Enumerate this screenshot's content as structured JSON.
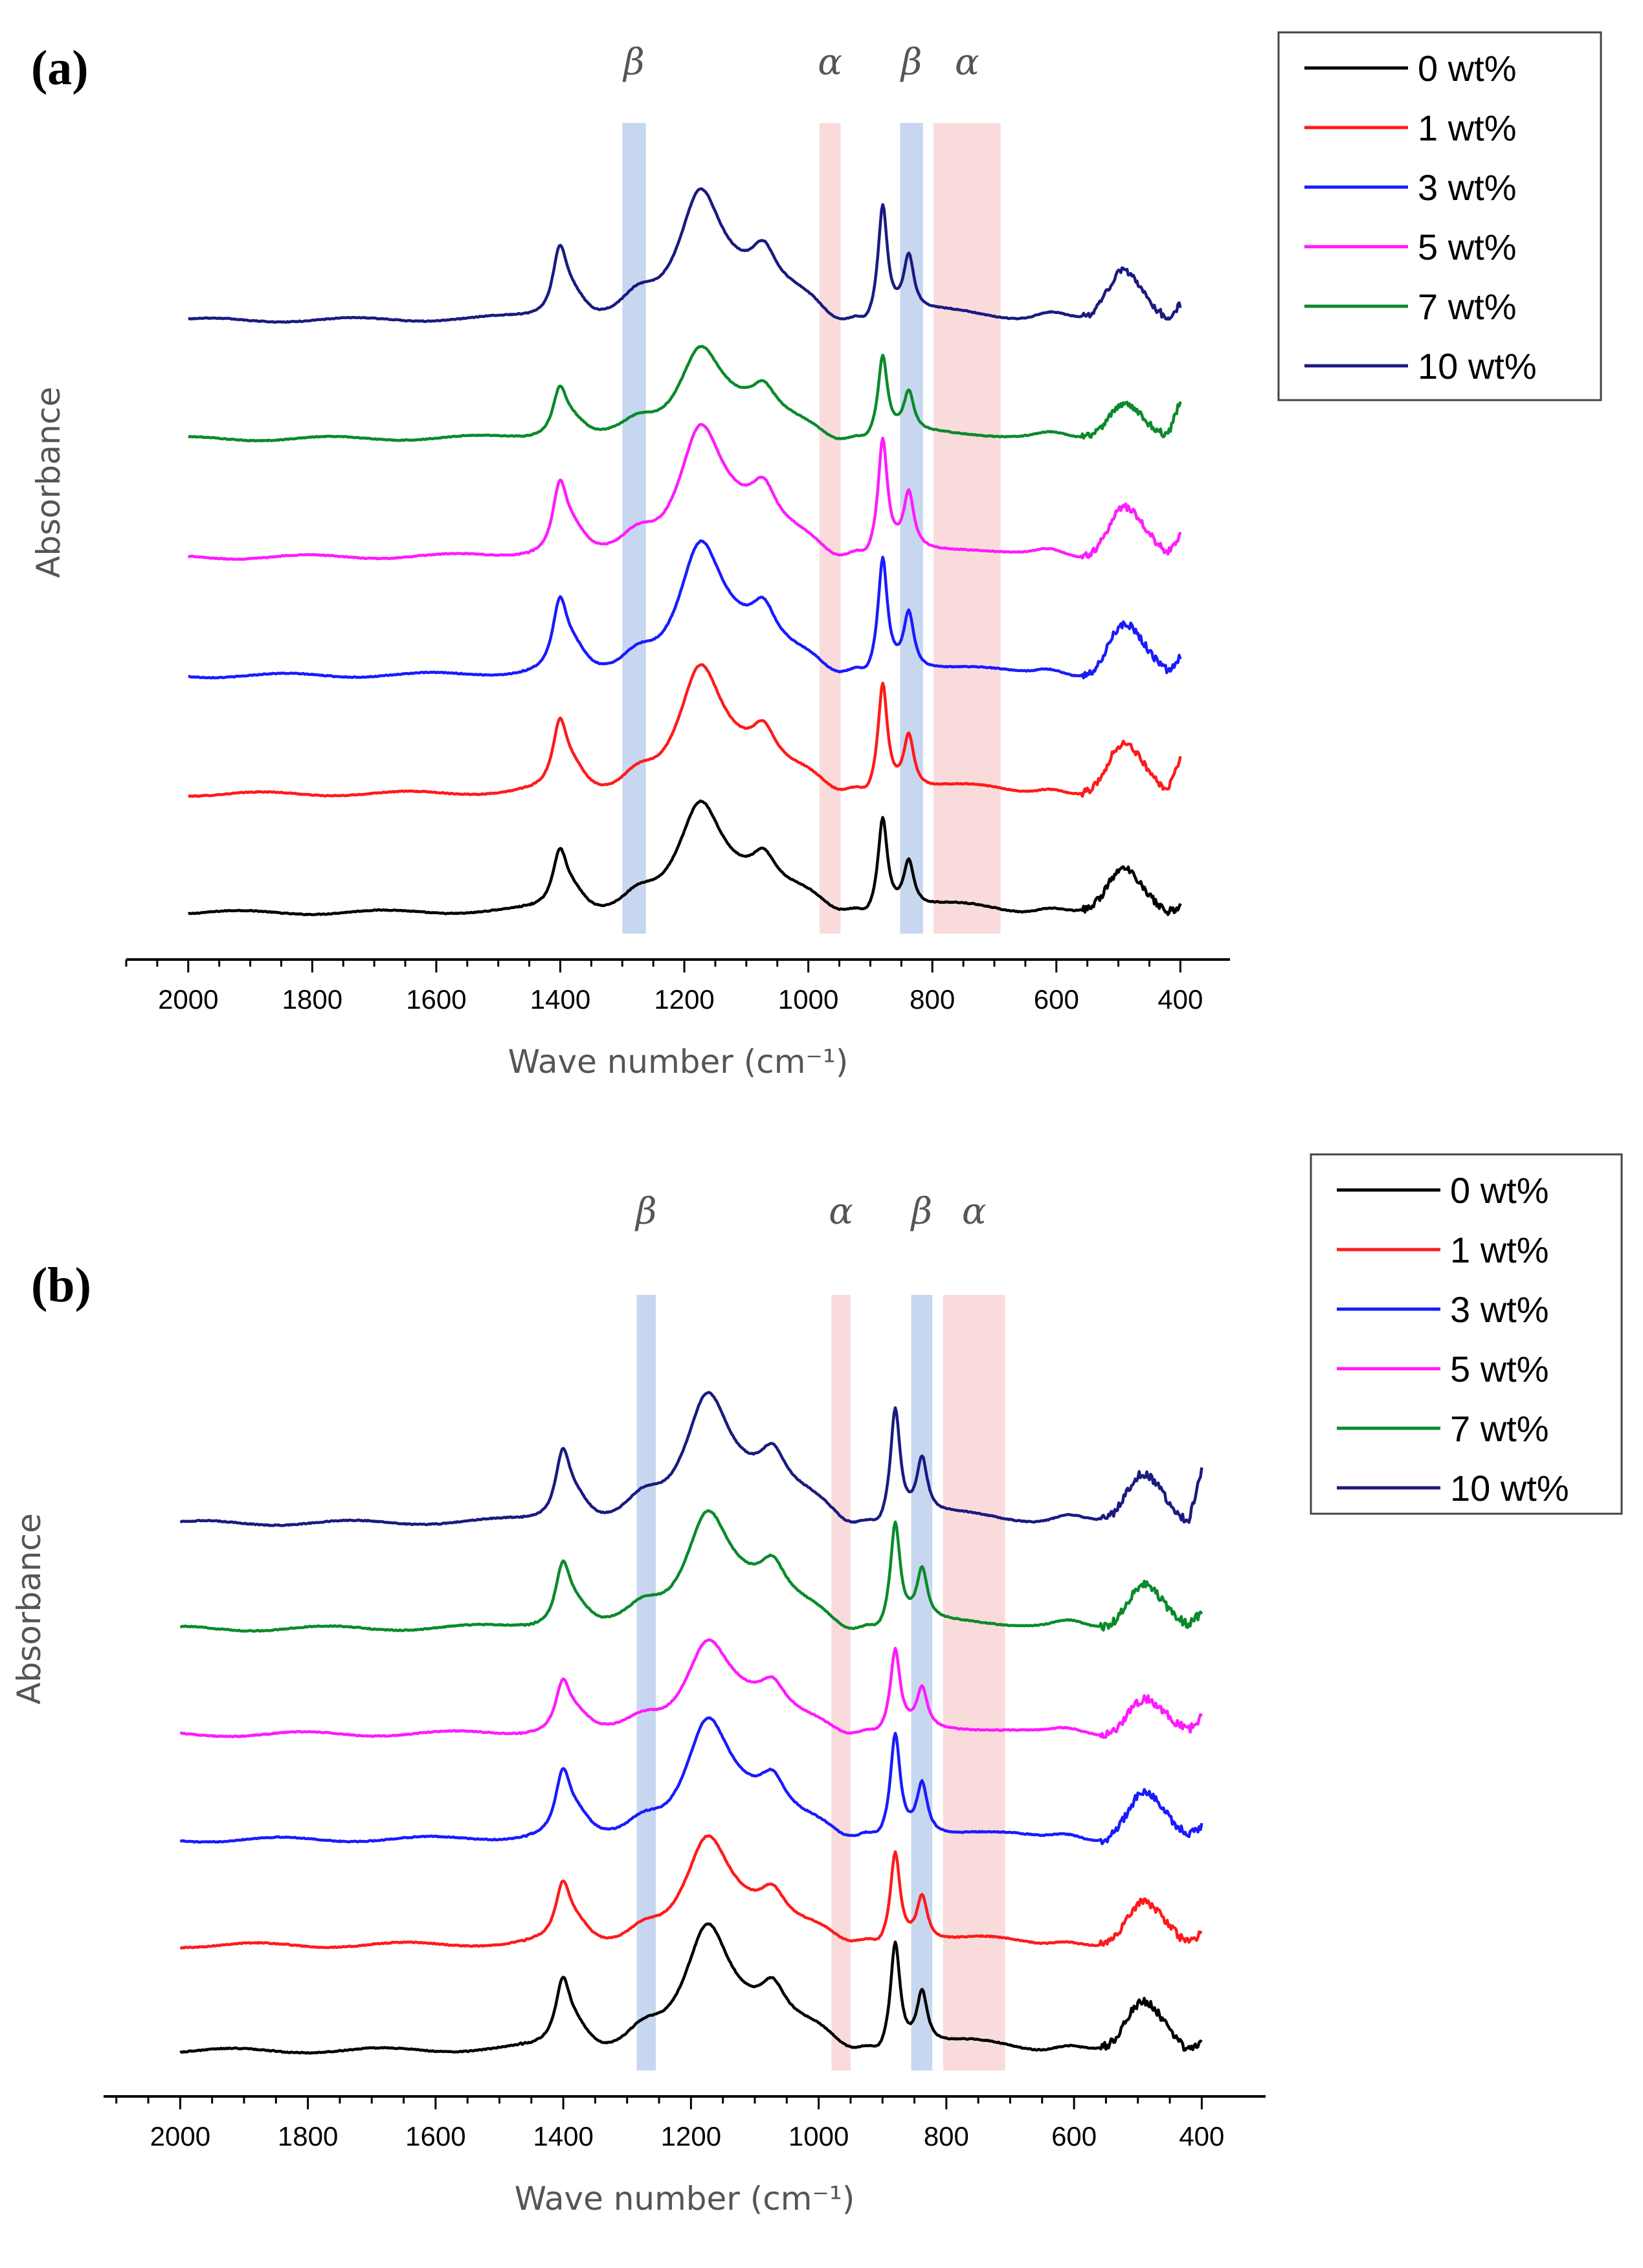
{
  "chart_data": [
    {
      "panel_label": "(a)",
      "type": "line",
      "xlabel": "Wave number (cm⁻¹)",
      "ylabel": "Absorbance",
      "xlim": [
        2100,
        320
      ],
      "x_reversed": true,
      "y_scale": "stacked offset, arbitrary units",
      "xticks": [
        2000,
        1800,
        1600,
        1400,
        1200,
        1000,
        800,
        600,
        400
      ],
      "grid": false,
      "legend_position": "top-right",
      "bands": [
        {
          "label": "β",
          "range": [
            1300,
            1262
          ],
          "color": "#b4c9ea"
        },
        {
          "label": "α",
          "range": [
            982,
            948
          ],
          "color": "#f8cfcf"
        },
        {
          "label": "β",
          "range": [
            852,
            815
          ],
          "color": "#b4c9ea"
        },
        {
          "label": "α",
          "range": [
            798,
            690
          ],
          "color": "#f8cfcf"
        }
      ],
      "series": [
        {
          "name": "0 wt%",
          "color": "#000000",
          "offset": 0.0,
          "scale": 1.0,
          "end_tail": 0.3
        },
        {
          "name": "1 wt%",
          "color": "#ff1a1a",
          "offset": 1.0,
          "scale": 1.15,
          "end_tail": 1.5
        },
        {
          "name": "3 wt%",
          "color": "#1a1aff",
          "offset": 2.0,
          "scale": 1.2,
          "end_tail": 0.7
        },
        {
          "name": "5 wt%",
          "color": "#ff1aff",
          "offset": 3.0,
          "scale": 1.2,
          "end_tail": 0.8
        },
        {
          "name": "7 wt%",
          "color": "#0a8a2a",
          "offset": 4.0,
          "scale": 0.85,
          "end_tail": 1.4
        },
        {
          "name": "10 wt%",
          "color": "#1a1a80",
          "offset": 5.0,
          "scale": 1.2,
          "end_tail": 0.6
        }
      ]
    },
    {
      "panel_label": "(b)",
      "type": "line",
      "xlabel": "Wave number (cm⁻¹)",
      "ylabel": "Absorbance",
      "xlim": [
        2120,
        300
      ],
      "x_reversed": true,
      "y_scale": "stacked offset, arbitrary units",
      "xticks": [
        2000,
        1800,
        1600,
        1400,
        1200,
        1000,
        800,
        600,
        400
      ],
      "grid": false,
      "legend_position": "top-right",
      "bands": [
        {
          "label": "β",
          "range": [
            1285,
            1255
          ],
          "color": "#b4c9ea"
        },
        {
          "label": "α",
          "range": [
            980,
            950
          ],
          "color": "#f8cfcf"
        },
        {
          "label": "β",
          "range": [
            855,
            822
          ],
          "color": "#b4c9ea"
        },
        {
          "label": "α",
          "range": [
            805,
            708
          ],
          "color": "#f8cfcf"
        }
      ],
      "series": [
        {
          "name": "0 wt%",
          "color": "#000000",
          "offset": 0.0,
          "scale": 1.0,
          "end_tail": 0.3
        },
        {
          "name": "1 wt%",
          "color": "#ff1a1a",
          "offset": 1.0,
          "scale": 0.85,
          "end_tail": 0.5
        },
        {
          "name": "3 wt%",
          "color": "#1a1aff",
          "offset": 2.0,
          "scale": 0.95,
          "end_tail": 0.4
        },
        {
          "name": "5 wt%",
          "color": "#ff1aff",
          "offset": 3.0,
          "scale": 0.75,
          "end_tail": 0.5
        },
        {
          "name": "7 wt%",
          "color": "#0a8a2a",
          "offset": 4.0,
          "scale": 0.95,
          "end_tail": 0.5
        },
        {
          "name": "10 wt%",
          "color": "#1a1a80",
          "offset": 5.0,
          "scale": 1.05,
          "end_tail": 1.8
        }
      ]
    }
  ]
}
